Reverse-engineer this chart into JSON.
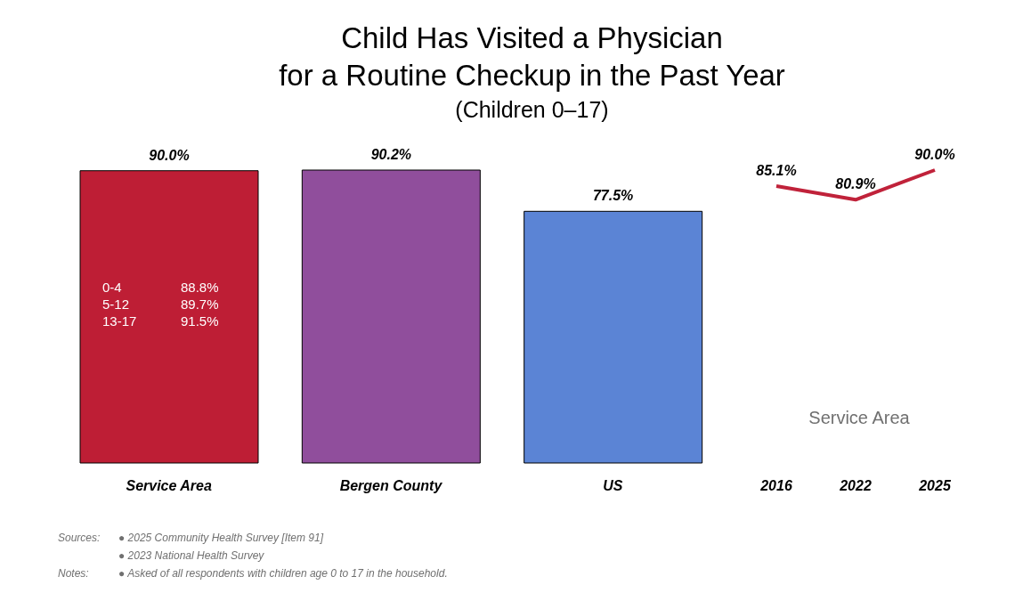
{
  "chart_data": [
    {
      "type": "bar",
      "title": "Child Has Visited a Physician\nfor a Routine Checkup in the Past Year",
      "subtitle": "(Children 0–17)",
      "categories": [
        "Service Area",
        "Bergen County",
        "US"
      ],
      "values": [
        90.0,
        90.2,
        77.5
      ],
      "colors": [
        "#be1e35",
        "#904e9c",
        "#5b84d5"
      ],
      "value_labels": [
        "90.0%",
        "90.2%",
        "77.5%"
      ],
      "annotations": [
        "0-4 88.8%",
        "5-12 89.7%",
        "13-17 91.5%",
        "Sources:",
        "● 2025 Community Health Survey [Item 91]",
        "● 2023 National Health Survey",
        "Notes:",
        "● Asked of all respondents with children age 0 to 17 in the household."
      ]
    },
    {
      "type": "line",
      "categories": [
        "2016",
        "2022",
        "2025"
      ],
      "values": [
        85.1,
        80.9,
        90.0
      ],
      "color": "#c0223a",
      "value_labels": [
        "85.1%",
        "80.9%",
        "90.0%"
      ],
      "marker": "none",
      "annotations": [
        "Service Area"
      ]
    }
  ]
}
